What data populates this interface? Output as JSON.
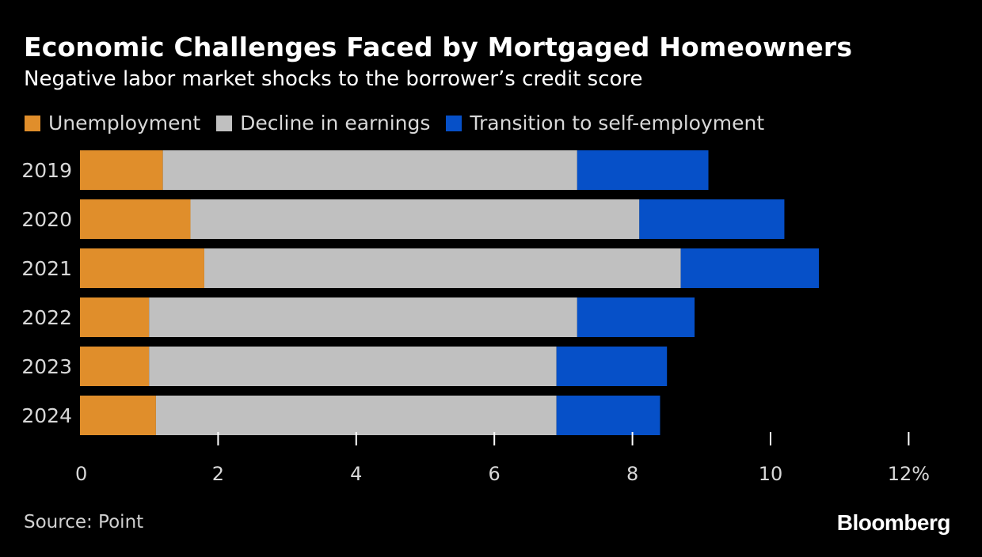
{
  "title": "Economic Challenges Faced by Mortgaged Homeowners",
  "subtitle": "Negative labor market shocks to the borrower’s credit score",
  "source": "Source: Point",
  "brand": "Bloomberg",
  "colors": {
    "background": "#000000",
    "unemployment": "#e08e2b",
    "decline": "#c0c0c0",
    "selfemployment": "#0650c8"
  },
  "chart_data": {
    "type": "bar",
    "orientation": "horizontal",
    "stacked": true,
    "categories": [
      "2019",
      "2020",
      "2021",
      "2022",
      "2023",
      "2024"
    ],
    "series": [
      {
        "name": "Unemployment",
        "color": "#e08e2b",
        "values": [
          1.2,
          1.6,
          1.8,
          1.0,
          1.0,
          1.1
        ]
      },
      {
        "name": "Decline in earnings",
        "color": "#c0c0c0",
        "values": [
          6.0,
          6.5,
          6.9,
          6.2,
          5.9,
          5.8
        ]
      },
      {
        "name": "Transition to self-employment",
        "color": "#0650c8",
        "values": [
          1.9,
          2.1,
          2.0,
          1.7,
          1.6,
          1.5
        ]
      }
    ],
    "xlim": [
      0,
      12
    ],
    "xticks": [
      "0",
      "2",
      "4",
      "6",
      "8",
      "10",
      "12%"
    ],
    "legend_position": "top-left",
    "grid": false
  }
}
